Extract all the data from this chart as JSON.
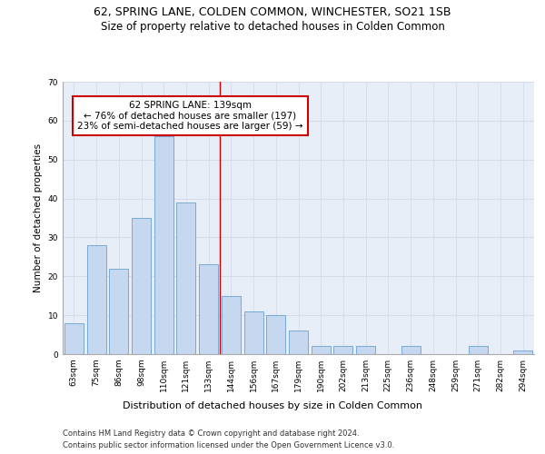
{
  "title": "62, SPRING LANE, COLDEN COMMON, WINCHESTER, SO21 1SB",
  "subtitle": "Size of property relative to detached houses in Colden Common",
  "xlabel": "Distribution of detached houses by size in Colden Common",
  "ylabel": "Number of detached properties",
  "categories": [
    "63sqm",
    "75sqm",
    "86sqm",
    "98sqm",
    "110sqm",
    "121sqm",
    "133sqm",
    "144sqm",
    "156sqm",
    "167sqm",
    "179sqm",
    "190sqm",
    "202sqm",
    "213sqm",
    "225sqm",
    "236sqm",
    "248sqm",
    "259sqm",
    "271sqm",
    "282sqm",
    "294sqm"
  ],
  "values": [
    8,
    28,
    22,
    35,
    56,
    39,
    23,
    15,
    11,
    10,
    6,
    2,
    2,
    2,
    0,
    2,
    0,
    0,
    2,
    0,
    1
  ],
  "bar_color": "#c5d8f0",
  "bar_edge_color": "#6aa0d0",
  "vline_x": 6.5,
  "vline_color": "#cc0000",
  "annotation_text": "62 SPRING LANE: 139sqm\n← 76% of detached houses are smaller (197)\n23% of semi-detached houses are larger (59) →",
  "annotation_box_color": "#ffffff",
  "annotation_box_edge_color": "#cc0000",
  "ylim": [
    0,
    70
  ],
  "yticks": [
    0,
    10,
    20,
    30,
    40,
    50,
    60,
    70
  ],
  "grid_color": "#d0d8e8",
  "background_color": "#e8eef8",
  "footer_line1": "Contains HM Land Registry data © Crown copyright and database right 2024.",
  "footer_line2": "Contains public sector information licensed under the Open Government Licence v3.0.",
  "title_fontsize": 9,
  "subtitle_fontsize": 8.5,
  "xlabel_fontsize": 8,
  "ylabel_fontsize": 7.5,
  "tick_fontsize": 6.5,
  "annotation_fontsize": 7.5,
  "footer_fontsize": 6
}
